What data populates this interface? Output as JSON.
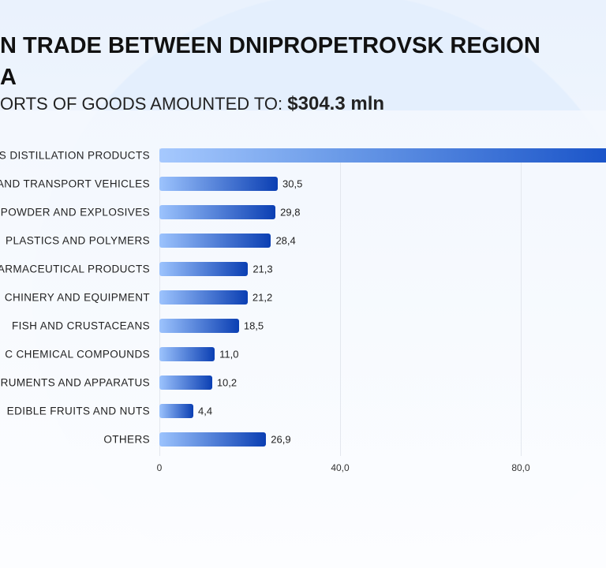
{
  "header": {
    "title_line1": "N TRADE BETWEEN DNIPROPETROVSK REGION",
    "title_line2": "A",
    "subtitle": "ORTS OF GOODS AMOUNTED TO:",
    "total": "$304.3 mln"
  },
  "chart_data": {
    "type": "bar",
    "orientation": "horizontal",
    "categories": [
      "S DISTILLATION PRODUCTS",
      "AND TRANSPORT VEHICLES",
      "POWDER AND EXPLOSIVES",
      "PLASTICS AND POLYMERS",
      "ARMACEUTICAL PRODUCTS",
      "CHINERY AND EQUIPMENT",
      "FISH AND CRUSTACEANS",
      "C CHEMICAL COMPOUNDS",
      "RUMENTS AND APPARATUS",
      "EDIBLE FRUITS AND NUTS",
      "OTHERS"
    ],
    "values": [
      null,
      30.5,
      29.8,
      28.4,
      21.3,
      21.2,
      18.5,
      11.0,
      10.2,
      4.4,
      26.9
    ],
    "value_labels": [
      "",
      "30,5",
      "29,8",
      "28,4",
      "21,3",
      "21,2",
      "18,5",
      "11,0",
      "10,2",
      "4,4",
      "26,9"
    ],
    "x_ticks": [
      "0",
      "40,0",
      "80,0"
    ],
    "x_tick_values": [
      0,
      40,
      80
    ],
    "grid": true,
    "colors": {
      "bar_start": "#9cc3fd",
      "bar_end": "#0b3fb3"
    }
  }
}
